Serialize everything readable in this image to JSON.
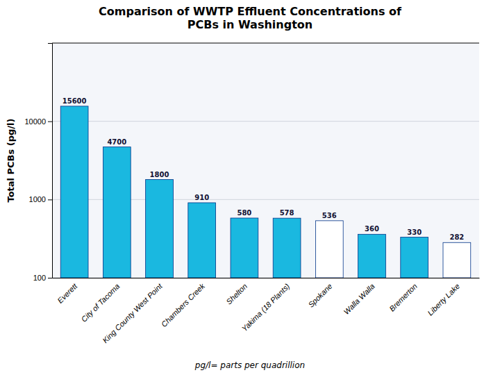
{
  "chart_data": {
    "type": "bar",
    "title": "Comparison of WWTP Effluent Concentrations of\nPCBs in Washington",
    "ylabel": "Total PCBs (pg/l)",
    "footnote": "pg/l= parts per quadrillion",
    "categories": [
      "Everett",
      "City of Tacoma",
      "King County West Point",
      "Chambers Creek",
      "Shelton",
      "Yakima (18 Plants)",
      "Spokane",
      "Walla Walla",
      "Bremerton",
      "Liberty Lake"
    ],
    "values": [
      15600,
      4700,
      1800,
      910,
      580,
      578,
      536,
      360,
      330,
      282
    ],
    "colors": [
      "#1ab8e0",
      "#1ab8e0",
      "#1ab8e0",
      "#1ab8e0",
      "#1ab8e0",
      "#1ab8e0",
      "#ffffff",
      "#1ab8e0",
      "#1ab8e0",
      "#ffffff"
    ],
    "log": "y",
    "ylim": [
      100,
      100000
    ],
    "yticks": [
      100,
      1000,
      10000
    ],
    "grid": true,
    "data_labels": true
  }
}
